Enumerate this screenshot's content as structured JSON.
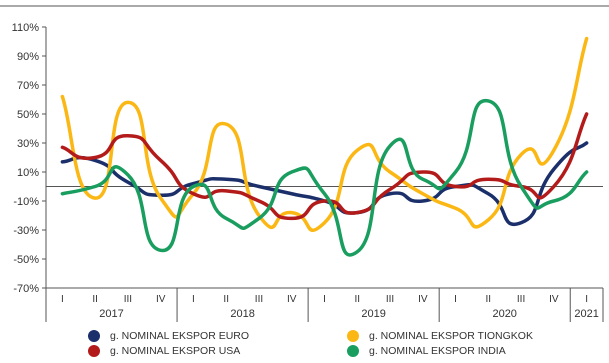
{
  "chart_data": {
    "type": "line",
    "x_quarters": [
      "I",
      "II",
      "III",
      "IV",
      "I",
      "II",
      "III",
      "IV",
      "I",
      "II",
      "III",
      "IV",
      "I",
      "II",
      "III",
      "IV",
      "I"
    ],
    "years": [
      "2017",
      "2018",
      "2019",
      "2020",
      "2021"
    ],
    "y_ticks": [
      "110%",
      "90%",
      "70%",
      "50%",
      "30%",
      "10%",
      "-10%",
      "-30%",
      "-50%",
      "-70%"
    ],
    "ylim": [
      -70,
      110
    ],
    "grid": false,
    "legend_position": "bottom",
    "series": [
      {
        "name": "g. NOMINAL EKSPOR EURO",
        "color": "#1b2f6b",
        "values": [
          17,
          18,
          3,
          -6,
          2,
          5,
          0,
          -5,
          -10,
          -18,
          -5,
          -10,
          0,
          -5,
          -25,
          12,
          30
        ]
      },
      {
        "name": "g. NOMINAL EKSPOR TIONGKOK",
        "color": "#fbb714",
        "values": [
          62,
          -8,
          58,
          -8,
          -5,
          43,
          -20,
          -18,
          -25,
          25,
          10,
          -5,
          -15,
          -23,
          22,
          25,
          102
        ]
      },
      {
        "name": "g. NOMINAL EKSPOR USA",
        "color": "#b31b1b",
        "values": [
          27,
          20,
          35,
          18,
          -5,
          -3,
          -10,
          -22,
          -10,
          -18,
          -2,
          10,
          0,
          5,
          0,
          0,
          50
        ]
      },
      {
        "name": "g. NOMINAL EKSPOR INDIA",
        "color": "#1a9e5f",
        "values": [
          -5,
          0,
          8,
          -44,
          0,
          -22,
          -22,
          10,
          -5,
          -45,
          28,
          5,
          10,
          59,
          0,
          -10,
          10
        ]
      }
    ]
  },
  "legend": [
    {
      "label": "g. NOMINAL EKSPOR EURO",
      "color": "#1b2f6b"
    },
    {
      "label": "g. NOMINAL EKSPOR TIONGKOK",
      "color": "#fbb714"
    },
    {
      "label": "g. NOMINAL EKSPOR USA",
      "color": "#b31b1b"
    },
    {
      "label": "g. NOMINAL EKSPOR INDIA",
      "color": "#1a9e5f"
    }
  ]
}
